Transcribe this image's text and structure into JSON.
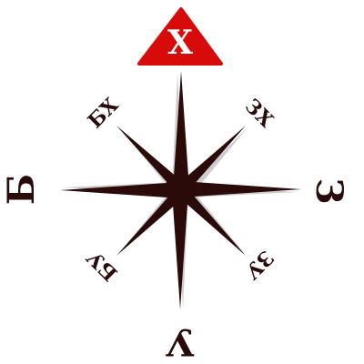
{
  "compass": {
    "north": "Х",
    "east": "З",
    "south": "У",
    "west": "Б",
    "northeast": "ЗХ",
    "southeast": "ЗУ",
    "southwest": "БУ",
    "northwest": "БХ"
  },
  "colors": {
    "needle": "#2b0a0a",
    "needle_shadow": "#c8c8c8",
    "north_marker": "#d80b0b",
    "label": "#2b0a0a",
    "background": "#ffffff"
  }
}
